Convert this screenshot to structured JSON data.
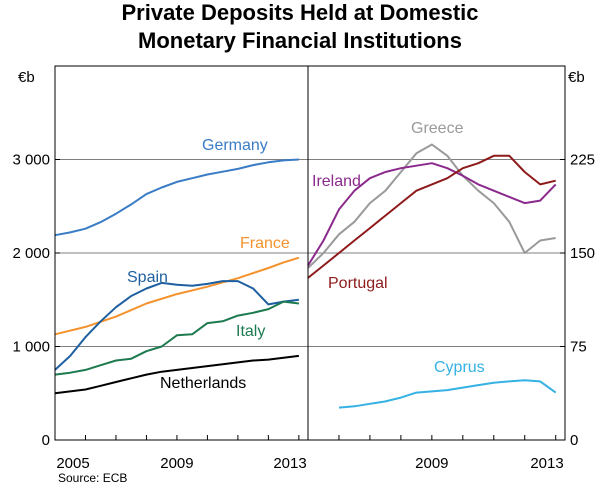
{
  "title_line1": "Private Deposits Held at Domestic",
  "title_line2": "Monetary Financial Institutions",
  "source": "Source: ECB",
  "chart_data": [
    {
      "type": "line",
      "panel": "left",
      "unit_label": "€b",
      "ylim": [
        0,
        4000
      ],
      "yticks": [
        0,
        1000,
        2000,
        3000
      ],
      "ytick_labels": [
        "0",
        "1 000",
        "2 000",
        "3 000"
      ],
      "xlim": [
        2005,
        2013.3
      ],
      "xtick_labels": [
        "2005",
        "2009",
        "2013"
      ],
      "grid": true,
      "series": [
        {
          "name": "Germany",
          "color": "#3a7cc6",
          "x": [
            2005,
            2005.5,
            2006,
            2006.5,
            2007,
            2007.5,
            2008,
            2008.5,
            2009,
            2009.5,
            2010,
            2010.5,
            2011,
            2011.5,
            2012,
            2012.5,
            2013
          ],
          "values": [
            2190,
            2220,
            2260,
            2330,
            2420,
            2520,
            2630,
            2700,
            2760,
            2800,
            2840,
            2870,
            2900,
            2940,
            2970,
            2990,
            3000
          ]
        },
        {
          "name": "France",
          "color": "#f4922d",
          "x": [
            2005,
            2006,
            2007,
            2008,
            2009,
            2010,
            2011,
            2012,
            2012.5,
            2013
          ],
          "values": [
            1130,
            1210,
            1320,
            1460,
            1560,
            1640,
            1730,
            1840,
            1900,
            1950
          ]
        },
        {
          "name": "Spain",
          "color": "#1d5fa0",
          "x": [
            2005,
            2005.5,
            2006,
            2006.5,
            2007,
            2007.5,
            2008,
            2008.5,
            2009,
            2009.5,
            2010,
            2010.5,
            2011,
            2011.5,
            2012,
            2012.5,
            2013
          ],
          "values": [
            750,
            900,
            1100,
            1270,
            1420,
            1540,
            1620,
            1680,
            1660,
            1650,
            1670,
            1700,
            1700,
            1620,
            1450,
            1480,
            1500
          ]
        },
        {
          "name": "Italy",
          "color": "#1d7a4f",
          "x": [
            2005,
            2005.5,
            2006,
            2006.5,
            2007,
            2007.5,
            2008,
            2008.5,
            2009,
            2009.5,
            2010,
            2010.5,
            2011,
            2011.5,
            2012,
            2012.5,
            2013
          ],
          "values": [
            700,
            720,
            750,
            800,
            850,
            870,
            950,
            1000,
            1120,
            1130,
            1250,
            1270,
            1330,
            1360,
            1400,
            1480,
            1460
          ]
        },
        {
          "name": "Netherlands",
          "color": "#000000",
          "x": [
            2005,
            2005.5,
            2006,
            2006.5,
            2007,
            2007.5,
            2008,
            2008.5,
            2009,
            2009.5,
            2010,
            2010.5,
            2011,
            2011.5,
            2012,
            2012.5,
            2013
          ],
          "values": [
            500,
            520,
            540,
            580,
            620,
            660,
            700,
            730,
            750,
            770,
            790,
            810,
            830,
            850,
            860,
            880,
            900
          ]
        }
      ]
    },
    {
      "type": "line",
      "panel": "right",
      "unit_label": "€b",
      "ylim": [
        0,
        300
      ],
      "yticks": [
        0,
        75,
        150,
        225
      ],
      "ytick_labels": [
        "0",
        "75",
        "150",
        "225"
      ],
      "xlim": [
        2005,
        2013.3
      ],
      "xtick_labels": [
        "2009",
        "2013"
      ],
      "grid": true,
      "series": [
        {
          "name": "Greece",
          "color": "#9a9a9a",
          "x": [
            2005,
            2005.5,
            2006,
            2006.5,
            2007,
            2007.5,
            2008,
            2008.5,
            2009,
            2009.5,
            2010,
            2010.5,
            2011,
            2011.5,
            2012,
            2012.5,
            2013
          ],
          "values": [
            138,
            150,
            165,
            175,
            190,
            200,
            215,
            230,
            237,
            228,
            212,
            200,
            190,
            175,
            150,
            160,
            162
          ]
        },
        {
          "name": "Ireland",
          "color": "#8b2a8c",
          "x": [
            2005,
            2005.5,
            2006,
            2006.5,
            2007,
            2007.5,
            2008,
            2008.5,
            2009,
            2009.5,
            2010,
            2010.5,
            2011,
            2011.5,
            2012,
            2012.5,
            2013
          ],
          "values": [
            140,
            160,
            185,
            200,
            210,
            215,
            218,
            220,
            222,
            218,
            212,
            205,
            200,
            195,
            190,
            192,
            205
          ]
        },
        {
          "name": "Portugal",
          "color": "#8e1b1b",
          "x": [
            2005,
            2005.5,
            2006,
            2006.5,
            2007,
            2007.5,
            2008,
            2008.5,
            2009,
            2009.5,
            2010,
            2010.5,
            2011,
            2011.5,
            2012,
            2012.5,
            2013
          ],
          "values": [
            130,
            140,
            150,
            160,
            170,
            180,
            190,
            200,
            205,
            210,
            218,
            222,
            228,
            228,
            215,
            205,
            208
          ]
        },
        {
          "name": "Cyprus",
          "color": "#35b1e4",
          "x": [
            2006,
            2006.5,
            2007,
            2007.5,
            2008,
            2008.5,
            2009,
            2009.5,
            2010,
            2010.5,
            2011,
            2011.5,
            2012,
            2012.5,
            2013
          ],
          "values": [
            26,
            27,
            29,
            31,
            34,
            38,
            39,
            40,
            42,
            44,
            46,
            47,
            48,
            47,
            38
          ]
        }
      ]
    }
  ]
}
